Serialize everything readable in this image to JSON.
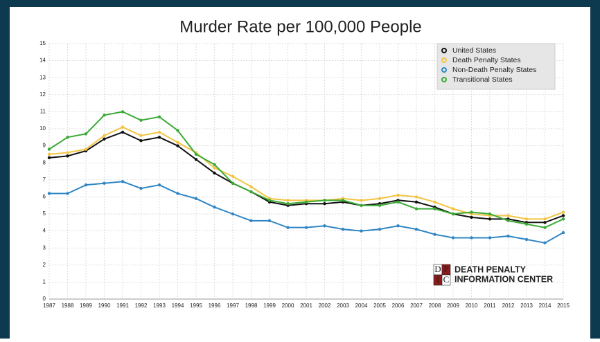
{
  "chart_data": {
    "type": "line",
    "title": "Murder Rate per 100,000 People",
    "x": [
      1987,
      1988,
      1989,
      1990,
      1991,
      1992,
      1993,
      1994,
      1995,
      1996,
      1997,
      1998,
      1999,
      2000,
      2001,
      2002,
      2003,
      2004,
      2005,
      2006,
      2007,
      2008,
      2009,
      2010,
      2011,
      2012,
      2013,
      2014,
      2015
    ],
    "xlim": [
      1987,
      2015
    ],
    "xticks": [
      1987,
      1988,
      1989,
      1990,
      1991,
      1992,
      1993,
      1994,
      1995,
      1996,
      1997,
      1998,
      1999,
      2000,
      2001,
      2002,
      2003,
      2004,
      2005,
      2006,
      2007,
      2008,
      2009,
      2010,
      2011,
      2012,
      2013,
      2014,
      2015
    ],
    "ylim": [
      0,
      15
    ],
    "yticks": [
      0,
      1,
      2,
      3,
      4,
      5,
      6,
      7,
      8,
      9,
      10,
      11,
      12,
      13,
      14,
      15
    ],
    "grid": true,
    "legend": "upper right",
    "series": [
      {
        "name": "United States",
        "color": "#111111",
        "values": [
          8.3,
          8.4,
          8.7,
          9.4,
          9.8,
          9.3,
          9.5,
          9.0,
          8.2,
          7.4,
          6.8,
          6.3,
          5.7,
          5.5,
          5.6,
          5.6,
          5.7,
          5.5,
          5.6,
          5.8,
          5.7,
          5.4,
          5.0,
          4.8,
          4.7,
          4.7,
          4.5,
          4.5,
          4.9
        ]
      },
      {
        "name": "Death Penalty States",
        "color": "#f3c443",
        "values": [
          8.5,
          8.6,
          8.8,
          9.6,
          10.1,
          9.6,
          9.8,
          9.2,
          8.6,
          7.7,
          7.2,
          6.6,
          5.9,
          5.8,
          5.8,
          5.8,
          5.9,
          5.8,
          5.9,
          6.1,
          6.0,
          5.7,
          5.3,
          5.0,
          4.9,
          4.9,
          4.7,
          4.7,
          5.1
        ]
      },
      {
        "name": "Non-Death Penalty States",
        "color": "#2f86c4",
        "values": [
          6.2,
          6.2,
          6.7,
          6.8,
          6.9,
          6.5,
          6.7,
          6.2,
          5.9,
          5.4,
          5.0,
          4.6,
          4.6,
          4.2,
          4.2,
          4.3,
          4.1,
          4.0,
          4.1,
          4.3,
          4.1,
          3.8,
          3.6,
          3.6,
          3.6,
          3.7,
          3.5,
          3.3,
          3.9
        ]
      },
      {
        "name": "Transitional States",
        "color": "#3aaa35",
        "values": [
          8.8,
          9.5,
          9.7,
          10.8,
          11.0,
          10.5,
          10.7,
          9.9,
          8.5,
          7.9,
          6.8,
          6.3,
          5.8,
          5.6,
          5.7,
          5.8,
          5.8,
          5.5,
          5.5,
          5.7,
          5.3,
          5.3,
          5.0,
          5.1,
          5.0,
          4.6,
          4.4,
          4.2,
          4.7
        ]
      }
    ]
  },
  "logo": {
    "letters": [
      "D",
      "P",
      "I",
      "C"
    ],
    "lines": [
      "DEATH PENALTY",
      "INFORMATION CENTER"
    ]
  }
}
